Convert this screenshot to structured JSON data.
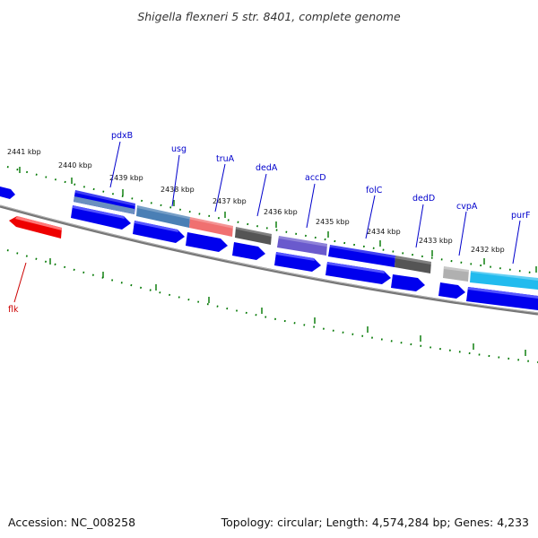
{
  "title": "Shigella flexneri 5 str. 8401, complete genome",
  "footer": {
    "accession": "Accession: NC_008258",
    "summary": "Topology: circular; Length: 4,574,284 bp; Genes: 4,233"
  },
  "scale_labels": [
    "2441 kbp",
    "2440 kbp",
    "2439 kbp",
    "2438 kbp",
    "2437 kbp",
    "2436 kbp",
    "2435 kbp",
    "2434 kbp",
    "2433 kbp",
    "2432 kbp"
  ],
  "gene_labels": [
    {
      "name": "pdxB",
      "color": "#0000cc"
    },
    {
      "name": "usg",
      "color": "#0000cc"
    },
    {
      "name": "truA",
      "color": "#0000cc"
    },
    {
      "name": "dedA",
      "color": "#0000cc"
    },
    {
      "name": "accD",
      "color": "#0000cc"
    },
    {
      "name": "folC",
      "color": "#0000cc"
    },
    {
      "name": "dedD",
      "color": "#0000cc"
    },
    {
      "name": "cvpA",
      "color": "#0000cc"
    },
    {
      "name": "purF",
      "color": "#0000cc"
    },
    {
      "name": "flk",
      "color": "#cc0000"
    }
  ],
  "colors": {
    "backbone": "#777777",
    "tick": "#007700",
    "cds": "#0000ee",
    "steelblue": "#4a7fb5",
    "salmon": "#f07070",
    "darkgray": "#555555",
    "slate": "#6a5acd",
    "lightgray": "#b0b0b0",
    "cyan": "#22bbee",
    "red": "#ee0000"
  }
}
